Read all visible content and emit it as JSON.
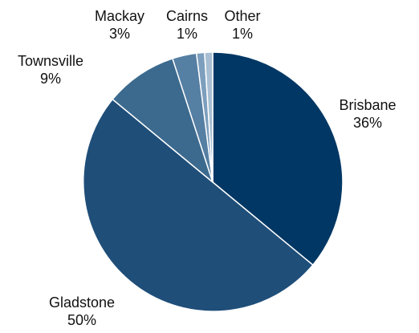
{
  "chart_data": {
    "type": "pie",
    "title": "",
    "slices": [
      {
        "label": "Brisbane",
        "value": 36,
        "value_label": "36%",
        "color": "#003764"
      },
      {
        "label": "Gladstone",
        "value": 50,
        "value_label": "50%",
        "color": "#1f4e79"
      },
      {
        "label": "Townsville",
        "value": 9,
        "value_label": "9%",
        "color": "#3c6a8e"
      },
      {
        "label": "Mackay",
        "value": 3,
        "value_label": "3%",
        "color": "#557fa3"
      },
      {
        "label": "Cairns",
        "value": 1,
        "value_label": "1%",
        "color": "#7d9fbd"
      },
      {
        "label": "Other",
        "value": 1,
        "value_label": "1%",
        "color": "#a8bfd3"
      }
    ],
    "start_angle": "12 o'clock",
    "direction": "clockwise",
    "legend": "none",
    "border_color": "#ffffff"
  }
}
